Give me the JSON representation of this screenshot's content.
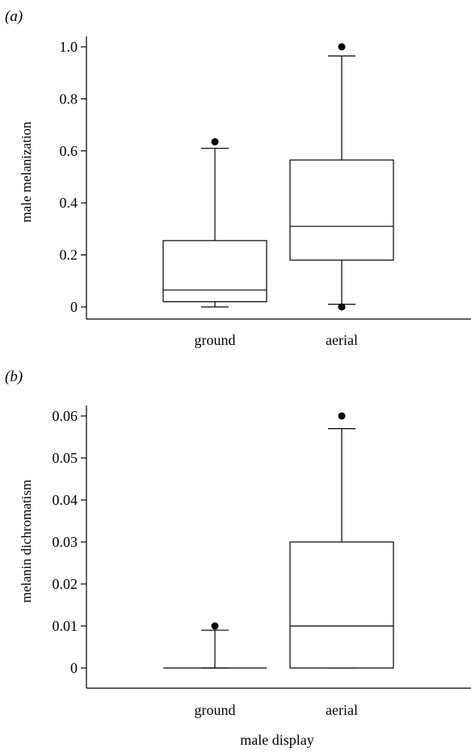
{
  "chart_data": [
    {
      "type": "boxplot",
      "panel_label": "(a)",
      "ylabel": "male melanization",
      "xlabel": "",
      "ylim": [
        0,
        1.0
      ],
      "yticks": [
        0,
        0.2,
        0.4,
        0.6,
        0.8,
        1.0
      ],
      "ytick_labels": [
        "0",
        "0.2",
        "0.4",
        "0.6",
        "0.8",
        "1.0"
      ],
      "categories": [
        "ground",
        "aerial"
      ],
      "boxes": [
        {
          "category": "ground",
          "whisker_low": 0.0,
          "q1": 0.02,
          "median": 0.065,
          "q3": 0.255,
          "whisker_high": 0.61,
          "outliers": [
            0.635
          ]
        },
        {
          "category": "aerial",
          "whisker_low": 0.01,
          "q1": 0.18,
          "median": 0.31,
          "q3": 0.565,
          "whisker_high": 0.965,
          "outliers": [
            1.0,
            0.0
          ]
        }
      ]
    },
    {
      "type": "boxplot",
      "panel_label": "(b)",
      "ylabel": "melanin dichromatism",
      "xlabel": "male display",
      "ylim": [
        0,
        0.06
      ],
      "yticks": [
        0,
        0.01,
        0.02,
        0.03,
        0.04,
        0.05,
        0.06
      ],
      "ytick_labels": [
        "0",
        "0.01",
        "0.02",
        "0.03",
        "0.04",
        "0.05",
        "0.06"
      ],
      "categories": [
        "ground",
        "aerial"
      ],
      "boxes": [
        {
          "category": "ground",
          "whisker_low": 0.0,
          "q1": 0.0,
          "median": 0.0,
          "q3": 0.0,
          "whisker_high": 0.009,
          "outliers": [
            0.01
          ]
        },
        {
          "category": "aerial",
          "whisker_low": 0.0,
          "q1": 0.0,
          "median": 0.01,
          "q3": 0.03,
          "whisker_high": 0.057,
          "outliers": [
            0.06
          ]
        }
      ]
    }
  ]
}
